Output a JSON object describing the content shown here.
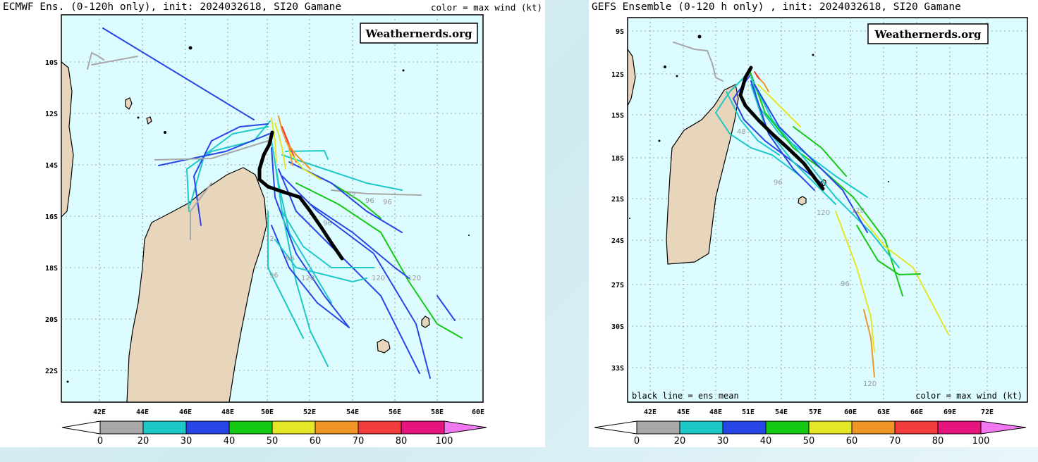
{
  "panels": [
    {
      "id": "ecmwf",
      "title": "ECMWF Ens. (0-120h only), init: 2024032618, SI20 Gamane",
      "title_right": "color = max wind (kt)",
      "badge": "Weathernerds.org",
      "lat_labels": [
        "10S",
        "12S",
        "14S",
        "16S",
        "18S",
        "20S",
        "22S"
      ],
      "lon_labels": [
        "42E",
        "44E",
        "46E",
        "48E",
        "50E",
        "52E",
        "54E",
        "56E",
        "58E",
        "60E"
      ],
      "lead_labels": [
        "72",
        "96",
        "96",
        "96",
        "72",
        "96",
        "120",
        "96",
        "120",
        "120"
      ],
      "colorbar_labels": [
        "0",
        "20",
        "30",
        "40",
        "50",
        "60",
        "70",
        "80",
        "100"
      ]
    },
    {
      "id": "gefs",
      "title": "GEFS Ensemble (0-120 h only) , init: 2024032618, SI20 Gamane",
      "badge": "Weathernerds.org",
      "bottom_left": "black line = ens mean",
      "bottom_right": "color = max wind (kt)",
      "lat_labels": [
        "9S",
        "12S",
        "15S",
        "18S",
        "21S",
        "24S",
        "27S",
        "30S",
        "33S"
      ],
      "lon_labels": [
        "42E",
        "45E",
        "48E",
        "51E",
        "54E",
        "57E",
        "60E",
        "63E",
        "66E",
        "69E",
        "72E"
      ],
      "lead_labels": [
        "48",
        "96",
        "120",
        "120",
        "96",
        "120"
      ],
      "colorbar_labels": [
        "0",
        "20",
        "30",
        "40",
        "50",
        "60",
        "70",
        "80",
        "100"
      ]
    }
  ],
  "wind_colors": [
    "#a8a8a8",
    "#1ec8c8",
    "#2846e6",
    "#14c814",
    "#e6e628",
    "#f09628",
    "#f03c3c",
    "#e6147d",
    "#f078f0"
  ]
}
